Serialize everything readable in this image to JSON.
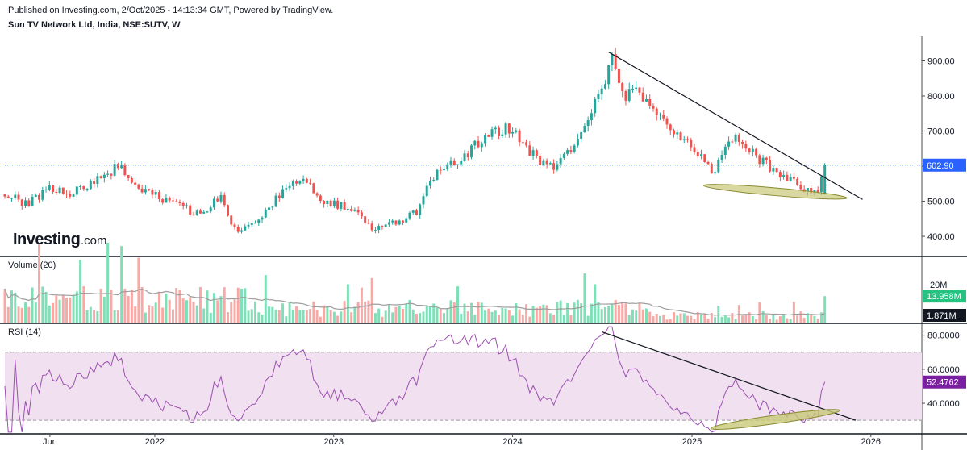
{
  "header": {
    "published": "Published on Investing.com, 2/Oct/2025 - 14:13:34 GMT, Powered by TradingView.",
    "instrument": "Sun TV Network Ltd, India, NSE:SUTV, W"
  },
  "logo": {
    "word": "Investing",
    "suffix": ".com"
  },
  "colors": {
    "up": "#26a69a",
    "down": "#ef5350",
    "vol_up": "#7fe0b8",
    "vol_down": "#f7a9a6",
    "vol_ma": "#9e9e9e",
    "rsi_line": "#9c4fb0",
    "rsi_band": "#f0e0f0",
    "last_price_badge": "#2962ff",
    "volume_badge": "#26c281",
    "volume_ma_badge": "#131722",
    "rsi_badge": "#7b1fa2",
    "ellipse_fill": "#c8c878",
    "ellipse_stroke": "#8a8a30"
  },
  "chart_data": [
    {
      "type": "candlestick",
      "title": "Sun TV Network Ltd, India, NSE:SUTV, W",
      "x_tick_labels": [
        "Jun",
        "2022",
        "2023",
        "2024",
        "2025",
        "2026"
      ],
      "x_ticks": [
        "2021-06-01",
        "2022-01-01",
        "2023-01-01",
        "2024-01-01",
        "2025-01-01",
        "2026-01-01"
      ],
      "y_ticks": [
        400,
        500,
        600,
        700,
        800,
        900
      ],
      "y_tick_labels": [
        "400.00",
        "500.00",
        "600.00",
        "700.00",
        "800.00",
        "900.00"
      ],
      "ylim": [
        345,
        970
      ],
      "last_price": 602.9,
      "last_price_label": "602.90",
      "close_path": [
        [
          "2021-03-01",
          520
        ],
        [
          "2021-04-15",
          490
        ],
        [
          "2021-06-01",
          540
        ],
        [
          "2021-07-15",
          520
        ],
        [
          "2021-09-15",
          570
        ],
        [
          "2021-10-20",
          600
        ],
        [
          "2021-12-01",
          530
        ],
        [
          "2022-02-01",
          500
        ],
        [
          "2022-04-01",
          460
        ],
        [
          "2022-05-15",
          510
        ],
        [
          "2022-06-15",
          415
        ],
        [
          "2022-07-20",
          430
        ],
        [
          "2022-09-15",
          520
        ],
        [
          "2022-11-01",
          575
        ],
        [
          "2022-12-01",
          500
        ],
        [
          "2023-02-15",
          480
        ],
        [
          "2023-03-20",
          420
        ],
        [
          "2023-05-15",
          445
        ],
        [
          "2023-06-20",
          470
        ],
        [
          "2023-07-15",
          560
        ],
        [
          "2023-09-15",
          620
        ],
        [
          "2023-11-15",
          690
        ],
        [
          "2024-01-01",
          710
        ],
        [
          "2024-02-15",
          625
        ],
        [
          "2024-03-25",
          590
        ],
        [
          "2024-05-15",
          680
        ],
        [
          "2024-06-15",
          780
        ],
        [
          "2024-07-25",
          910
        ],
        [
          "2024-08-15",
          800
        ],
        [
          "2024-09-15",
          810
        ],
        [
          "2024-10-15",
          750
        ],
        [
          "2024-12-15",
          680
        ],
        [
          "2025-02-15",
          580
        ],
        [
          "2025-03-15",
          660
        ],
        [
          "2025-04-01",
          690
        ],
        [
          "2025-05-15",
          620
        ],
        [
          "2025-07-01",
          580
        ],
        [
          "2025-08-15",
          535
        ],
        [
          "2025-09-15",
          525
        ],
        [
          "2025-09-29",
          602.9
        ]
      ],
      "annotations": [
        {
          "type": "trendline",
          "from": [
            "2024-07-15",
            925
          ],
          "to": [
            "2025-12-15",
            505
          ]
        },
        {
          "type": "ellipse",
          "center": [
            "2025-06-20",
            527
          ],
          "span_weeks": 42,
          "span_price": 22
        }
      ]
    },
    {
      "type": "bar",
      "title": "Volume (20)",
      "y_ticks": [
        "20M"
      ],
      "ylim_millions": [
        0,
        34
      ],
      "last_volume_label": "13.958M",
      "volume_ma_label": "1.871M",
      "notes": "weekly volume bars green on up weeks, red on down weeks, grey 20-period moving average"
    },
    {
      "type": "line",
      "title": "RSI (14)",
      "y_ticks": [
        40,
        60,
        80
      ],
      "y_tick_labels": [
        "40.0000",
        "60.0000",
        "80.0000"
      ],
      "ylim": [
        22,
        86
      ],
      "band": [
        30,
        70
      ],
      "last_value_label": "52.4762",
      "annotations": [
        {
          "type": "trendline",
          "from": [
            "2024-07-01",
            82
          ],
          "to": [
            "2025-12-01",
            30
          ]
        },
        {
          "type": "ellipse",
          "center": [
            "2025-06-20",
            30.5
          ],
          "span_weeks": 38,
          "span_rsi": 5
        }
      ]
    }
  ]
}
